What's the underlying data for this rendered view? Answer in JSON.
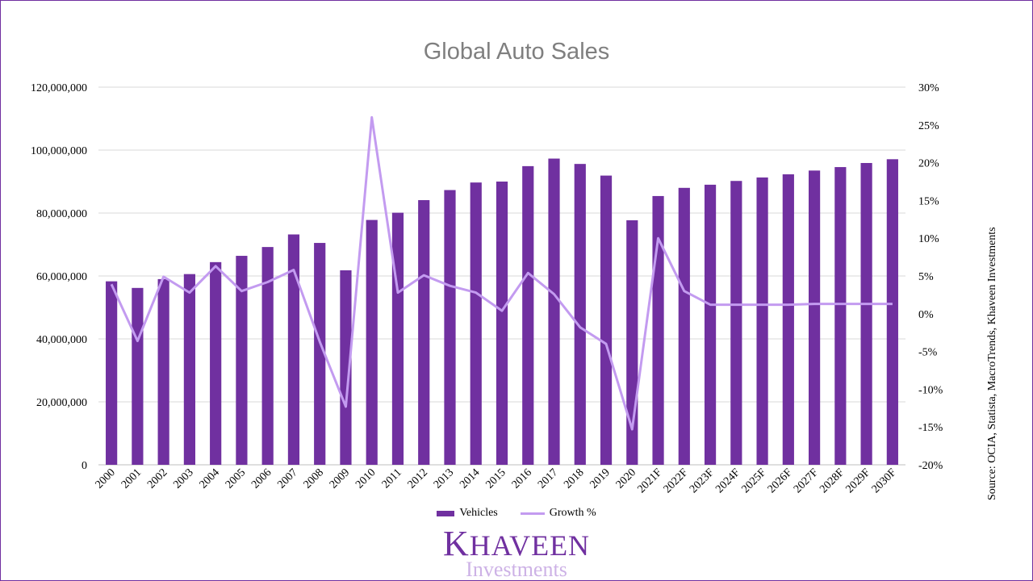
{
  "chart_data": {
    "type": "bar",
    "title": "Global Auto Sales",
    "source": "Source: OCIA, Statista, MacroTrends, Khaveen Investments",
    "categories": [
      "2000",
      "2001",
      "2002",
      "2003",
      "2004",
      "2005",
      "2006",
      "2007",
      "2008",
      "2009",
      "2010",
      "2011",
      "2012",
      "2013",
      "2014",
      "2015",
      "2016",
      "2017",
      "2018",
      "2019",
      "2020",
      "2021F",
      "2022F",
      "2023F",
      "2024F",
      "2025F",
      "2026F",
      "2027F",
      "2028F",
      "2029F",
      "2030F"
    ],
    "series": [
      {
        "name": "Vehicles",
        "type": "bar",
        "axis": "left",
        "color": "#7030a0",
        "values": [
          58300000,
          56200000,
          59000000,
          60600000,
          64400000,
          66400000,
          69200000,
          73200000,
          70500000,
          61800000,
          77800000,
          80100000,
          84100000,
          87300000,
          89700000,
          90000000,
          94900000,
          97300000,
          95600000,
          91900000,
          77700000,
          85400000,
          88000000,
          89000000,
          90200000,
          91300000,
          92300000,
          93500000,
          94600000,
          95900000,
          97100000
        ]
      },
      {
        "name": "Growth %",
        "type": "line",
        "axis": "right",
        "color": "#c39bf0",
        "values": [
          3.9,
          -3.6,
          4.9,
          2.8,
          6.3,
          3.0,
          4.2,
          5.8,
          -3.7,
          -12.3,
          26.0,
          2.8,
          5.1,
          3.7,
          2.8,
          0.4,
          5.4,
          2.6,
          -1.8,
          -4.0,
          -15.3,
          10.0,
          3.0,
          1.2,
          1.2,
          1.2,
          1.2,
          1.3,
          1.3,
          1.3,
          1.3
        ]
      }
    ],
    "y_left": {
      "min": 0,
      "max": 120000000,
      "step": 20000000,
      "tick_labels": [
        "0",
        "20,000,000",
        "40,000,000",
        "60,000,000",
        "80,000,000",
        "100,000,000",
        "120,000,000"
      ]
    },
    "y_right": {
      "min": -20,
      "max": 30,
      "step": 5,
      "tick_labels": [
        "-20%",
        "-15%",
        "-10%",
        "-5%",
        "0%",
        "5%",
        "10%",
        "15%",
        "20%",
        "25%",
        "30%"
      ]
    },
    "grid": true,
    "legend_position": "bottom"
  },
  "branding": {
    "logo_first": "K",
    "logo_rest": "HAVEEN",
    "logo_sub": "Investments"
  }
}
